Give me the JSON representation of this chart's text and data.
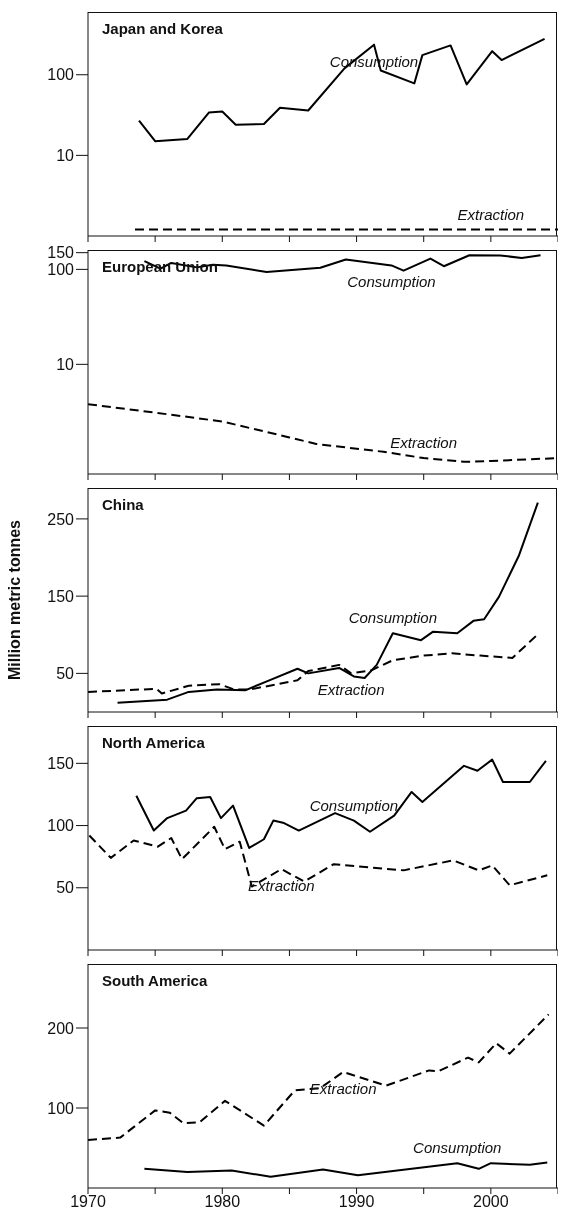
{
  "chart_data": [
    {
      "type": "line",
      "title": "Japan and Korea",
      "log": "y",
      "xlim": [
        1970,
        2005
      ],
      "xticks": [
        1970,
        {
          "value": 1975,
          "label": null
        },
        1980,
        {
          "value": 1985,
          "label": null
        },
        1990,
        {
          "value": 1995,
          "label": null
        },
        2000,
        {
          "value": 2005,
          "label": null
        }
      ],
      "ylim": [
        1,
        600
      ],
      "yticks": [
        10,
        100
      ],
      "tick_labels": "y",
      "series": [
        {
          "name": "Consumption",
          "color": "#000000",
          "line_style": "solid",
          "x": [
            1973.8,
            1975,
            1977.4,
            1979,
            1980,
            1981,
            1983.1,
            1984.3,
            1986.4,
            1989.1,
            1991.3,
            1991.8,
            1994.3,
            1994.9,
            1997,
            1998.2,
            2000.1,
            2000.8,
            2004
          ],
          "values": [
            27,
            15,
            16,
            34,
            35,
            24,
            24.5,
            39,
            36,
            120,
            236,
            113,
            78,
            175,
            231,
            76,
            196,
            152,
            279
          ]
        },
        {
          "name": "Extraction",
          "color": "#000000",
          "line_style": "dashed",
          "x": [
            1973.5,
            1980,
            1990,
            2000,
            2005
          ],
          "values": [
            1.2,
            1.2,
            1.2,
            1.2,
            1.2
          ]
        }
      ]
    },
    {
      "type": "line",
      "title": "European Union",
      "log": "y",
      "xlim": [
        1970,
        2005
      ],
      "xticks": [
        1970,
        {
          "value": 1975,
          "label": null
        },
        1980,
        {
          "value": 1985,
          "label": null
        },
        1990,
        {
          "value": 1995,
          "label": null
        },
        2000,
        {
          "value": 2005,
          "label": null
        }
      ],
      "ylim": [
        0.7,
        160
      ],
      "yticks": [
        10,
        100,
        150
      ],
      "tick_labels": "y",
      "series": [
        {
          "name": "Consumption",
          "color": "#000000",
          "line_style": "solid",
          "x": [
            1974.2,
            1975.4,
            1976.2,
            1978.1,
            1979.3,
            1980.3,
            1983.3,
            1987.3,
            1989.2,
            1992.6,
            1993.5,
            1995.5,
            1996.5,
            1998.4,
            2000.7,
            2002.3,
            2003.7
          ],
          "values": [
            122,
            102,
            117,
            105,
            112,
            110,
            94,
            104,
            127,
            110,
            97,
            130,
            108,
            141,
            140,
            132,
            141
          ]
        },
        {
          "name": "Extraction",
          "color": "#000000",
          "line_style": "dashed",
          "x": [
            1970,
            1975,
            1980,
            1985,
            1987,
            1992,
            1995,
            1998,
            2000,
            2005
          ],
          "values": [
            3.8,
            3.1,
            2.5,
            1.7,
            1.45,
            1.2,
            1.03,
            0.94,
            0.96,
            1.03
          ]
        }
      ]
    },
    {
      "type": "line",
      "title": "China",
      "ylabel": "Million metric tonnes",
      "xlim": [
        1970,
        2005
      ],
      "xticks": [
        1970,
        {
          "value": 1975,
          "label": null
        },
        1980,
        {
          "value": 1985,
          "label": null
        },
        1990,
        {
          "value": 1995,
          "label": null
        },
        2000,
        {
          "value": 2005,
          "label": null
        }
      ],
      "ylim": [
        0,
        290
      ],
      "yticks": [
        50,
        150,
        250
      ],
      "tick_labels": "y",
      "series": [
        {
          "name": "Consumption",
          "color": "#000000",
          "line_style": "solid",
          "x": [
            1972.2,
            1975.9,
            1977.5,
            1979.6,
            1981.7,
            1983.5,
            1985.6,
            1986.4,
            1988.7,
            1989.8,
            1990.6,
            1991.5,
            1992.7,
            1994.8,
            1995.7,
            1997.5,
            1998.7,
            1999.5,
            2000.6,
            2002.1,
            2003.5
          ],
          "values": [
            12,
            16,
            26,
            29,
            28,
            41,
            56,
            50,
            57,
            46,
            44,
            61,
            102,
            93,
            104,
            102,
            118,
            120,
            149,
            203,
            271
          ]
        },
        {
          "name": "Extraction",
          "color": "#000000",
          "line_style": "dashed",
          "x": [
            1970,
            1975.1,
            1975.5,
            1977.5,
            1979.8,
            1980.9,
            1982,
            1985.6,
            1986.4,
            1988.7,
            1989.6,
            1991.1,
            1992.7,
            1995,
            1997.1,
            1999.2,
            2001.6,
            2003.4
          ],
          "values": [
            26,
            30,
            24,
            34,
            36,
            29,
            29,
            41,
            53,
            61,
            50,
            54,
            67,
            73,
            76,
            73,
            70,
            99
          ]
        }
      ]
    },
    {
      "type": "line",
      "title": "North America",
      "xlim": [
        1970,
        2005
      ],
      "xticks": [
        1970,
        {
          "value": 1975,
          "label": null
        },
        1980,
        {
          "value": 1985,
          "label": null
        },
        1990,
        {
          "value": 1995,
          "label": null
        },
        2000,
        {
          "value": 2005,
          "label": null
        }
      ],
      "ylim": [
        0,
        180
      ],
      "yticks": [
        50,
        100,
        150
      ],
      "tick_labels": "y",
      "series": [
        {
          "name": "Consumption",
          "color": "#000000",
          "line_style": "solid",
          "x": [
            1973.6,
            1974.9,
            1975.9,
            1977.3,
            1978.1,
            1979.1,
            1979.9,
            1980.8,
            1982,
            1983.1,
            1983.8,
            1984.6,
            1985.7,
            1988.4,
            1989.8,
            1991,
            1992.8,
            1994.1,
            1994.9,
            1998,
            1999,
            2000.1,
            2000.9,
            2002.9,
            2004.1
          ],
          "values": [
            124,
            96,
            106,
            112,
            122,
            123,
            106,
            116,
            82,
            89,
            104,
            102,
            96,
            110,
            104,
            95,
            108,
            127,
            119,
            148,
            144,
            153,
            135,
            135,
            152
          ]
        },
        {
          "name": "Extraction",
          "color": "#000000",
          "line_style": "dashed",
          "x": [
            1970.1,
            1971.7,
            1973.4,
            1975.2,
            1976.2,
            1977,
            1979.4,
            1980.2,
            1981.3,
            1982.2,
            1984.4,
            1986.1,
            1988.3,
            1993.5,
            1997.2,
            1999.1,
            2000.1,
            2001.4,
            2004.2
          ],
          "values": [
            92,
            74,
            88,
            83,
            90,
            73,
            99,
            81,
            87,
            51,
            65,
            55,
            69,
            64,
            72,
            64,
            68,
            52,
            60
          ]
        }
      ]
    },
    {
      "type": "line",
      "title": "South America",
      "xlim": [
        1970,
        2005
      ],
      "xticks": [
        1970,
        {
          "value": 1975,
          "label": null
        },
        1980,
        {
          "value": 1985,
          "label": null
        },
        1990,
        {
          "value": 1995,
          "label": null
        },
        2000,
        {
          "value": 2005,
          "label": null
        }
      ],
      "ylim": [
        0,
        280
      ],
      "yticks": [
        100,
        200
      ],
      "series": [
        {
          "name": "Extraction",
          "color": "#000000",
          "line_style": "dashed",
          "x": [
            1970,
            1972.4,
            1975,
            1976.1,
            1977.1,
            1978.3,
            1980.2,
            1983.1,
            1985.4,
            1987.3,
            1989,
            1992.2,
            1995.4,
            1996.1,
            1998.3,
            1999.1,
            2000.4,
            2001.4,
            2004.3
          ],
          "values": [
            60,
            63,
            97,
            94,
            81,
            82,
            109,
            78,
            122,
            125,
            145,
            128,
            147,
            146,
            163,
            157,
            181,
            168,
            217
          ]
        },
        {
          "name": "Consumption",
          "color": "#000000",
          "line_style": "solid",
          "x": [
            1974.2,
            1977.4,
            1980.7,
            1983.6,
            1987.5,
            1990.1,
            1997.5,
            1999.1,
            2000,
            2002.9,
            2004.2
          ],
          "values": [
            24,
            20,
            22,
            14,
            23,
            16,
            31,
            24,
            31,
            29,
            32
          ]
        }
      ]
    }
  ]
}
